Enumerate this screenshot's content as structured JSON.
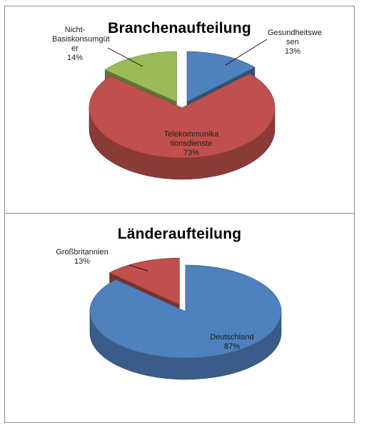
{
  "chart_data": [
    {
      "type": "pie",
      "title": "Branchenaufteilung",
      "slices": [
        {
          "name": "Gesundheitswesen",
          "label_lines": [
            "Gesundheitswe",
            "sen"
          ],
          "value": 13,
          "value_label": "13%",
          "color": "#4F81BD",
          "exploded": true
        },
        {
          "name": "Telekommunikationsdienste",
          "label_lines": [
            "Telekommunika",
            "tionsdienste"
          ],
          "value": 73,
          "value_label": "73%",
          "color": "#C0504D",
          "exploded": false
        },
        {
          "name": "Nicht-Basiskonsumgüter",
          "label_lines": [
            "Nicht-",
            "Basiskonsumgüt",
            "er"
          ],
          "value": 14,
          "value_label": "14%",
          "color": "#9BBB59",
          "exploded": true
        }
      ]
    },
    {
      "type": "pie",
      "title": "Länderaufteilung",
      "slices": [
        {
          "name": "Deutschland",
          "label_lines": [
            "Deutschland"
          ],
          "value": 87,
          "value_label": "87%",
          "color": "#4F81BD",
          "exploded": false
        },
        {
          "name": "Großbritannien",
          "label_lines": [
            "Großbritannien"
          ],
          "value": 13,
          "value_label": "13%",
          "color": "#C0504D",
          "exploded": true
        }
      ]
    }
  ]
}
